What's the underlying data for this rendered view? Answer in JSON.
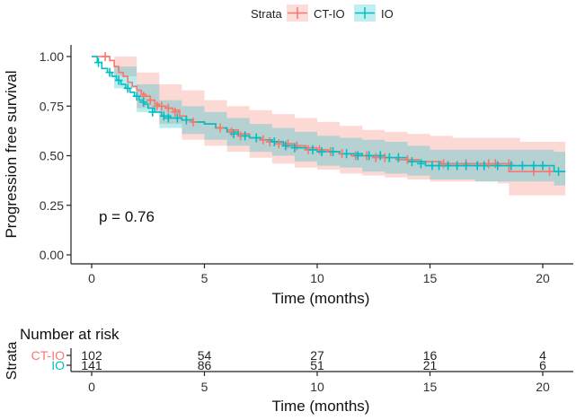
{
  "chart_data": {
    "type": "kaplan-meier",
    "legend_title": "Strata",
    "legend_position": "top",
    "xlabel": "Time (months)",
    "ylabel": "Progression free survival",
    "xlim": [
      0,
      21
    ],
    "ylim": [
      0,
      1
    ],
    "xticks": [
      "0",
      "5",
      "10",
      "15",
      "20"
    ],
    "yticks": [
      "0.00",
      "0.25",
      "0.50",
      "0.75",
      "1.00"
    ],
    "annotation": "p = 0.76",
    "series": [
      {
        "name": "CT-IO",
        "color": "#F8766D",
        "band_color": "#F8766D",
        "steps": [
          [
            0,
            1.0
          ],
          [
            0.8,
            0.98
          ],
          [
            1.0,
            0.95
          ],
          [
            1.2,
            0.92
          ],
          [
            1.4,
            0.9
          ],
          [
            1.6,
            0.87
          ],
          [
            1.8,
            0.85
          ],
          [
            2.0,
            0.83
          ],
          [
            2.2,
            0.81
          ],
          [
            2.4,
            0.8
          ],
          [
            2.6,
            0.78
          ],
          [
            2.8,
            0.76
          ],
          [
            3.0,
            0.75
          ],
          [
            3.3,
            0.74
          ],
          [
            3.6,
            0.73
          ],
          [
            3.9,
            0.7
          ],
          [
            4.2,
            0.68
          ],
          [
            4.5,
            0.67
          ],
          [
            5.0,
            0.66
          ],
          [
            5.5,
            0.64
          ],
          [
            6.0,
            0.63
          ],
          [
            6.5,
            0.61
          ],
          [
            7.0,
            0.59
          ],
          [
            7.5,
            0.58
          ],
          [
            8.0,
            0.57
          ],
          [
            8.5,
            0.56
          ],
          [
            9.0,
            0.55
          ],
          [
            9.5,
            0.54
          ],
          [
            10.0,
            0.53
          ],
          [
            10.5,
            0.52
          ],
          [
            11.0,
            0.51
          ],
          [
            11.5,
            0.5
          ],
          [
            12.5,
            0.49
          ],
          [
            13.5,
            0.48
          ],
          [
            14.5,
            0.47
          ],
          [
            15.5,
            0.46
          ],
          [
            18.5,
            0.42
          ],
          [
            21.0,
            0.42
          ]
        ],
        "upper": [
          [
            0,
            1.0
          ],
          [
            1,
            1.0
          ],
          [
            2,
            0.92
          ],
          [
            3,
            0.86
          ],
          [
            4,
            0.83
          ],
          [
            5,
            0.78
          ],
          [
            6,
            0.75
          ],
          [
            7,
            0.73
          ],
          [
            8,
            0.71
          ],
          [
            9,
            0.69
          ],
          [
            10,
            0.67
          ],
          [
            11,
            0.65
          ],
          [
            12,
            0.63
          ],
          [
            13,
            0.62
          ],
          [
            14,
            0.61
          ],
          [
            15,
            0.6
          ],
          [
            16,
            0.59
          ],
          [
            18.5,
            0.59
          ],
          [
            19,
            0.57
          ],
          [
            21,
            0.57
          ]
        ],
        "lower": [
          [
            0,
            1.0
          ],
          [
            1,
            0.9
          ],
          [
            2,
            0.74
          ],
          [
            3,
            0.66
          ],
          [
            4,
            0.58
          ],
          [
            5,
            0.55
          ],
          [
            6,
            0.52
          ],
          [
            7,
            0.49
          ],
          [
            8,
            0.46
          ],
          [
            9,
            0.44
          ],
          [
            10,
            0.43
          ],
          [
            11,
            0.41
          ],
          [
            12,
            0.4
          ],
          [
            13,
            0.39
          ],
          [
            14,
            0.38
          ],
          [
            15,
            0.37
          ],
          [
            18,
            0.36
          ],
          [
            18.5,
            0.3
          ],
          [
            21,
            0.3
          ]
        ],
        "censors": [
          [
            0.6,
            1.0
          ],
          [
            2.3,
            0.8
          ],
          [
            2.6,
            0.78
          ],
          [
            2.9,
            0.75
          ],
          [
            3.1,
            0.75
          ],
          [
            3.4,
            0.74
          ],
          [
            3.7,
            0.72
          ],
          [
            4.5,
            0.67
          ],
          [
            5.7,
            0.64
          ],
          [
            6.2,
            0.62
          ],
          [
            6.6,
            0.6
          ],
          [
            7.6,
            0.58
          ],
          [
            7.9,
            0.57
          ],
          [
            8.3,
            0.56
          ],
          [
            8.7,
            0.56
          ],
          [
            9.1,
            0.55
          ],
          [
            9.6,
            0.53
          ],
          [
            10.1,
            0.53
          ],
          [
            10.6,
            0.52
          ],
          [
            11.1,
            0.51
          ],
          [
            11.7,
            0.5
          ],
          [
            12.2,
            0.5
          ],
          [
            12.6,
            0.49
          ],
          [
            13.0,
            0.49
          ],
          [
            14.0,
            0.48
          ],
          [
            15.6,
            0.46
          ],
          [
            16.6,
            0.46
          ],
          [
            17.6,
            0.46
          ],
          [
            17.9,
            0.46
          ],
          [
            18.5,
            0.46
          ],
          [
            19.6,
            0.42
          ],
          [
            20.3,
            0.42
          ]
        ]
      },
      {
        "name": "IO",
        "color": "#00BFC4",
        "band_color": "#00BFC4",
        "steps": [
          [
            0,
            1.0
          ],
          [
            0.25,
            0.97
          ],
          [
            0.45,
            0.94
          ],
          [
            0.7,
            0.92
          ],
          [
            0.9,
            0.9
          ],
          [
            1.1,
            0.88
          ],
          [
            1.3,
            0.86
          ],
          [
            1.5,
            0.84
          ],
          [
            1.7,
            0.82
          ],
          [
            1.9,
            0.8
          ],
          [
            2.1,
            0.78
          ],
          [
            2.3,
            0.76
          ],
          [
            2.5,
            0.74
          ],
          [
            2.8,
            0.72
          ],
          [
            3.1,
            0.7
          ],
          [
            3.5,
            0.69
          ],
          [
            4.0,
            0.68
          ],
          [
            4.5,
            0.67
          ],
          [
            5.0,
            0.66
          ],
          [
            5.5,
            0.64
          ],
          [
            6.0,
            0.62
          ],
          [
            6.5,
            0.6
          ],
          [
            7.0,
            0.59
          ],
          [
            7.5,
            0.58
          ],
          [
            8.0,
            0.57
          ],
          [
            8.5,
            0.55
          ],
          [
            9.0,
            0.54
          ],
          [
            9.5,
            0.53
          ],
          [
            10.0,
            0.52
          ],
          [
            11.0,
            0.51
          ],
          [
            12.0,
            0.5
          ],
          [
            13.0,
            0.49
          ],
          [
            14.0,
            0.47
          ],
          [
            14.8,
            0.45
          ],
          [
            20.5,
            0.42
          ],
          [
            21.0,
            0.42
          ]
        ],
        "upper": [
          [
            0,
            1.0
          ],
          [
            1,
            0.95
          ],
          [
            2,
            0.86
          ],
          [
            3,
            0.78
          ],
          [
            4,
            0.75
          ],
          [
            5,
            0.72
          ],
          [
            6,
            0.69
          ],
          [
            7,
            0.66
          ],
          [
            8,
            0.64
          ],
          [
            9,
            0.62
          ],
          [
            10,
            0.6
          ],
          [
            11,
            0.59
          ],
          [
            12,
            0.58
          ],
          [
            13,
            0.57
          ],
          [
            14,
            0.55
          ],
          [
            15,
            0.53
          ],
          [
            17,
            0.53
          ],
          [
            20.5,
            0.52
          ],
          [
            21,
            0.5
          ]
        ],
        "lower": [
          [
            0,
            1.0
          ],
          [
            1,
            0.84
          ],
          [
            2,
            0.72
          ],
          [
            3,
            0.64
          ],
          [
            4,
            0.61
          ],
          [
            5,
            0.58
          ],
          [
            6,
            0.55
          ],
          [
            7,
            0.52
          ],
          [
            8,
            0.5
          ],
          [
            9,
            0.47
          ],
          [
            10,
            0.45
          ],
          [
            11,
            0.44
          ],
          [
            12,
            0.42
          ],
          [
            13,
            0.41
          ],
          [
            14,
            0.4
          ],
          [
            15,
            0.38
          ],
          [
            17,
            0.37
          ],
          [
            20.5,
            0.35
          ],
          [
            21,
            0.35
          ]
        ],
        "censors": [
          [
            0.3,
            0.97
          ],
          [
            0.8,
            0.92
          ],
          [
            1.2,
            0.88
          ],
          [
            1.6,
            0.84
          ],
          [
            2.0,
            0.8
          ],
          [
            2.3,
            0.77
          ],
          [
            2.7,
            0.72
          ],
          [
            3.2,
            0.7
          ],
          [
            3.4,
            0.69
          ],
          [
            3.8,
            0.69
          ],
          [
            4.2,
            0.68
          ],
          [
            6.3,
            0.61
          ],
          [
            6.8,
            0.6
          ],
          [
            7.3,
            0.59
          ],
          [
            8.1,
            0.57
          ],
          [
            8.6,
            0.55
          ],
          [
            9.0,
            0.54
          ],
          [
            9.8,
            0.53
          ],
          [
            10.2,
            0.52
          ],
          [
            10.7,
            0.52
          ],
          [
            11.3,
            0.51
          ],
          [
            11.8,
            0.5
          ],
          [
            12.3,
            0.5
          ],
          [
            12.8,
            0.5
          ],
          [
            13.2,
            0.49
          ],
          [
            13.6,
            0.49
          ],
          [
            14.2,
            0.47
          ],
          [
            14.6,
            0.46
          ],
          [
            15.1,
            0.45
          ],
          [
            15.4,
            0.45
          ],
          [
            15.8,
            0.45
          ],
          [
            16.2,
            0.45
          ],
          [
            16.6,
            0.45
          ],
          [
            17.1,
            0.45
          ],
          [
            17.4,
            0.45
          ],
          [
            18.0,
            0.45
          ],
          [
            18.6,
            0.45
          ],
          [
            19.1,
            0.45
          ],
          [
            19.6,
            0.45
          ],
          [
            20.0,
            0.45
          ],
          [
            20.7,
            0.42
          ]
        ]
      }
    ]
  },
  "risk_table": {
    "title": "Number at risk",
    "ylabel": "Strata",
    "xlabel": "Time (months)",
    "rows": [
      {
        "name": "CT-IO",
        "color": "#F8766D",
        "values": [
          "102",
          "54",
          "27",
          "16",
          "4"
        ]
      },
      {
        "name": "IO",
        "color": "#00BFC4",
        "values": [
          "141",
          "86",
          "51",
          "21",
          "6"
        ]
      }
    ]
  }
}
